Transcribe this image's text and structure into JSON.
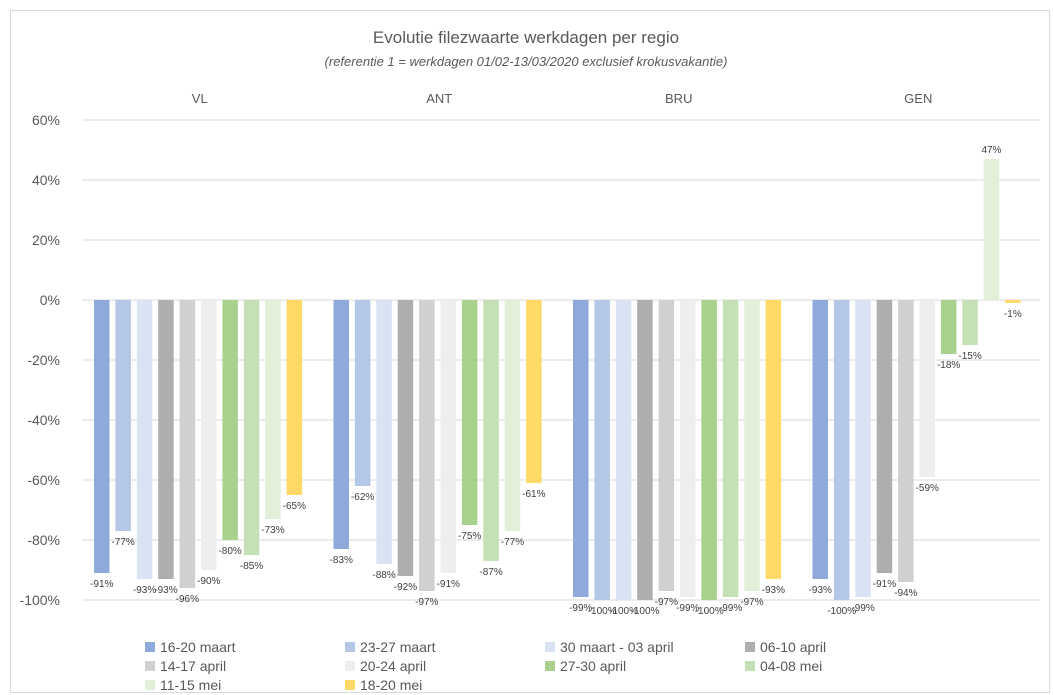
{
  "chart_data": {
    "type": "bar",
    "title": "Evolutie filezwaarte werkdagen per regio",
    "subtitle": "(referentie 1 = werkdagen 01/02-13/03/2020 exclusief krokusvakantie)",
    "categories": [
      "VL",
      "ANT",
      "BRU",
      "GEN"
    ],
    "ylim": [
      -100,
      60
    ],
    "yticks": [
      "60%",
      "40%",
      "20%",
      "0%",
      "-20%",
      "-40%",
      "-60%",
      "-80%",
      "-100%"
    ],
    "grid": true,
    "legend_position": "bottom",
    "series": [
      {
        "name": "16-20 maart",
        "color": "#8eaadb",
        "values": [
          -91,
          -83,
          -99,
          -93
        ],
        "labels": [
          "-91%",
          "-83%",
          "-99%",
          "-93%"
        ]
      },
      {
        "name": "23-27 maart",
        "color": "#b4c7e7",
        "values": [
          -77,
          -62,
          -100,
          -100
        ],
        "labels": [
          "-77%",
          "-62%",
          "-100%",
          "-100%"
        ]
      },
      {
        "name": "30 maart - 03 april",
        "color": "#dae3f3",
        "values": [
          -93,
          -88,
          -100,
          -99
        ],
        "labels": [
          "-93%",
          "-88%",
          "-100%",
          "-99%"
        ]
      },
      {
        "name": "06-10 april",
        "color": "#aeaeae",
        "values": [
          -93,
          -92,
          -100,
          -91
        ],
        "labels": [
          "-93%",
          "-92%",
          "-100%",
          "-91%"
        ]
      },
      {
        "name": "14-17 april",
        "color": "#d0d0d0",
        "values": [
          -96,
          -97,
          -97,
          -94
        ],
        "labels": [
          "-96%",
          "-97%",
          "-97%",
          "-94%"
        ]
      },
      {
        "name": "20-24 april",
        "color": "#eeeeee",
        "values": [
          -90,
          -91,
          -99,
          -59
        ],
        "labels": [
          "-90%",
          "-91%",
          "-99%",
          "-59%"
        ]
      },
      {
        "name": "27-30 april",
        "color": "#a9d18e",
        "values": [
          -80,
          -75,
          -100,
          -18
        ],
        "labels": [
          "-80%",
          "-75%",
          "-100%",
          "-18%"
        ]
      },
      {
        "name": "04-08 mei",
        "color": "#c5e0b4",
        "values": [
          -85,
          -87,
          -99,
          -15
        ],
        "labels": [
          "-85%",
          "-87%",
          "-99%",
          "-15%"
        ]
      },
      {
        "name": "11-15 mei",
        "color": "#e2f0d9",
        "values": [
          -73,
          -77,
          -97,
          47
        ],
        "labels": [
          "-73%",
          "-77%",
          "-97%",
          "47%"
        ]
      },
      {
        "name": "18-20 mei",
        "color": "#ffd966",
        "values": [
          -65,
          -61,
          -93,
          -1
        ],
        "labels": [
          "-65%",
          "-61%",
          "-93%",
          "-1%"
        ]
      }
    ]
  }
}
